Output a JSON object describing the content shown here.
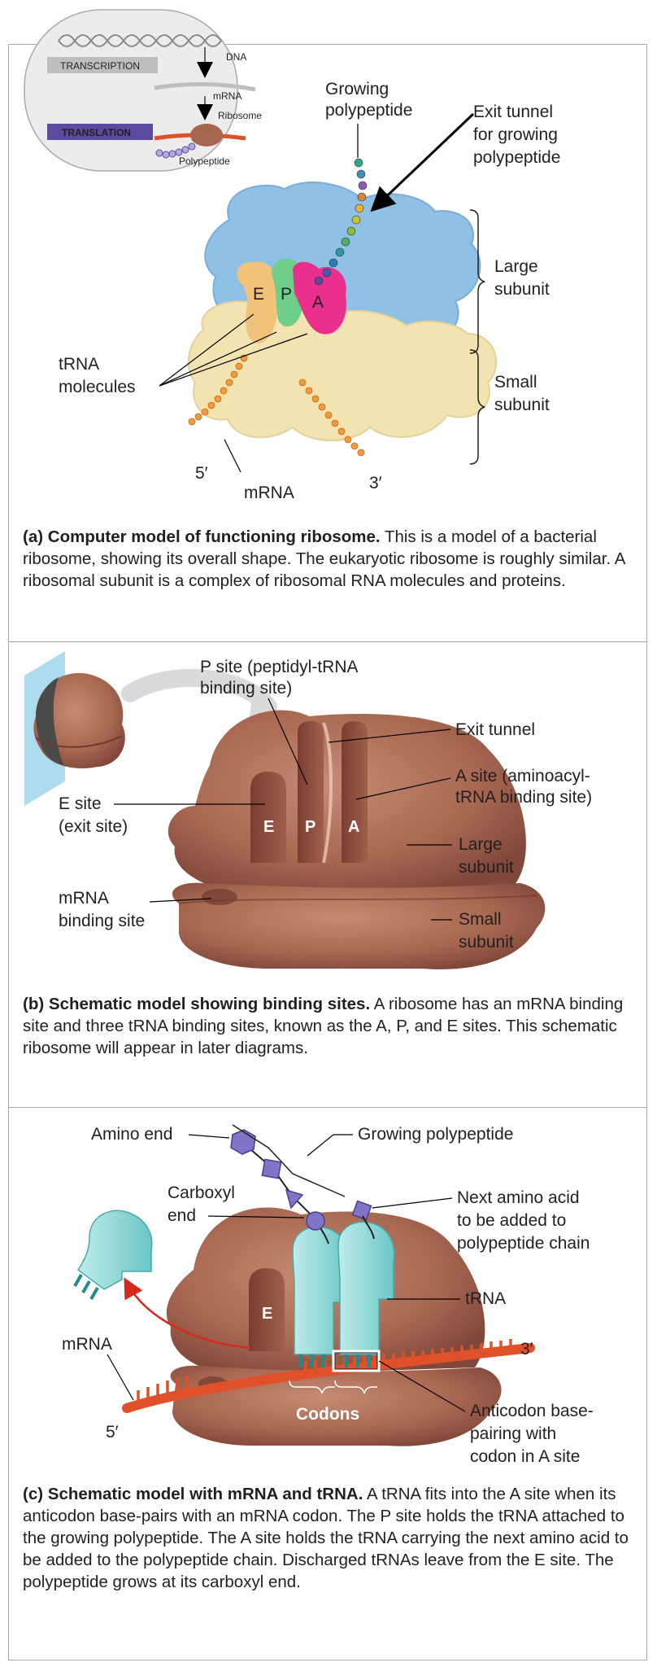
{
  "inset": {
    "transcription": "TRANSCRIPTION",
    "translation": "TRANSLATION",
    "dna": "DNA",
    "mrna": "mRNA",
    "ribosome": "Ribosome",
    "polypeptide": "Polypeptide"
  },
  "panel_a": {
    "growing_polypeptide": [
      "Growing",
      "polypeptide"
    ],
    "exit_tunnel": [
      "Exit tunnel",
      "for growing",
      "polypeptide"
    ],
    "large_subunit": [
      "Large",
      "subunit"
    ],
    "small_subunit": [
      "Small",
      "subunit"
    ],
    "trna_molecules": [
      "tRNA",
      "molecules"
    ],
    "site_e": "E",
    "site_p": "P",
    "site_a": "A",
    "five_prime": "5′",
    "three_prime": "3′",
    "mrna": "mRNA",
    "caption_label": "(a)",
    "caption_title": "Computer model of functioning ribosome.",
    "caption_text": "This is a model of a bacterial ribosome, showing its overall shape. The eukaryotic ribosome is roughly similar. A ribosomal subunit is a complex of ribosomal RNA molecules and proteins."
  },
  "panel_b": {
    "p_site": [
      "P site (peptidyl-tRNA",
      "binding site)"
    ],
    "exit_tunnel": "Exit tunnel",
    "a_site": [
      "A site (aminoacyl-",
      "tRNA binding site)"
    ],
    "e_site": [
      "E site",
      "(exit site)"
    ],
    "large_subunit": [
      "Large",
      "subunit"
    ],
    "mrna_binding": [
      "mRNA",
      "binding site"
    ],
    "small_subunit": [
      "Small",
      "subunit"
    ],
    "site_e": "E",
    "site_p": "P",
    "site_a": "A",
    "caption_label": "(b)",
    "caption_title": "Schematic model showing binding sites.",
    "caption_text": "A ribosome has an mRNA binding site and three tRNA binding sites, known as the A, P, and E sites. This schematic ribosome will appear in later diagrams."
  },
  "panel_c": {
    "amino_end": "Amino end",
    "growing_polypeptide": "Growing polypeptide",
    "carboxyl_end": [
      "Carboxyl",
      "end"
    ],
    "next_amino_acid": [
      "Next amino acid",
      "to be added to",
      "polypeptide chain"
    ],
    "trna": "tRNA",
    "mrna": "mRNA",
    "three_prime": "3′",
    "five_prime": "5′",
    "codons": "Codons",
    "site_e": "E",
    "anticodon": [
      "Anticodon base-",
      "pairing with",
      "codon in A site"
    ],
    "caption_label": "(c)",
    "caption_title": "Schematic model with mRNA and tRNA.",
    "caption_text": "A tRNA fits into the A site when its anticodon base-pairs with an mRNA codon. The P site holds the tRNA attached to the growing polypeptide. The A site holds the tRNA carrying the next amino acid to be added to the polypeptide chain. Discharged tRNAs leave from the E site. The polypeptide grows at its carboxyl end."
  }
}
